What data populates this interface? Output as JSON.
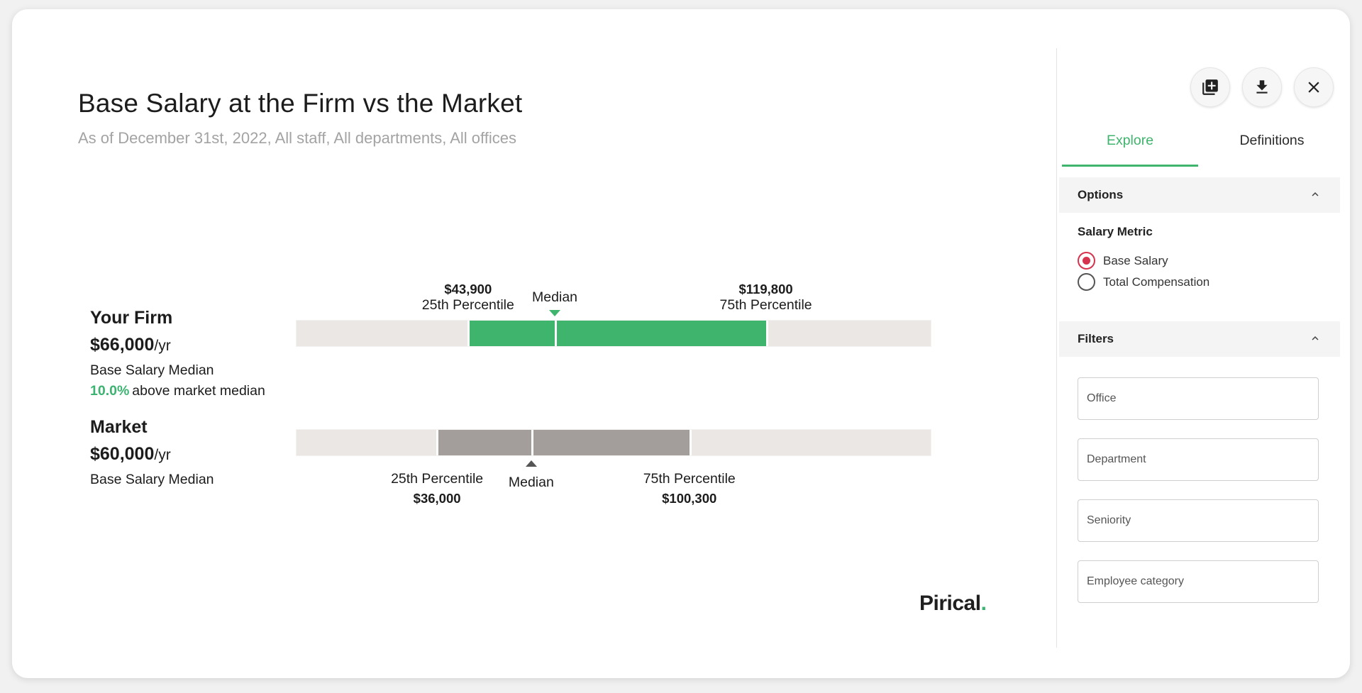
{
  "header": {
    "title": "Base Salary at the Firm vs the Market",
    "subtitle": "As of December 31st, 2022, All staff, All departments, All offices"
  },
  "firm": {
    "name": "Your Firm",
    "median_value": "$66,000",
    "per": "/yr",
    "metric_label": "Base Salary Median",
    "delta_pct": "10.0%",
    "delta_text": "above market median",
    "p25_amount": "$43,900",
    "p25_label": "25th Percentile",
    "median_label": "Median",
    "p75_amount": "$119,800",
    "p75_label": "75th Percentile"
  },
  "market": {
    "name": "Market",
    "median_value": "$60,000",
    "per": "/yr",
    "metric_label": "Base Salary Median",
    "p25_amount": "$36,000",
    "p25_label": "25th Percentile",
    "median_label": "Median",
    "p75_amount": "$100,300",
    "p75_label": "75th Percentile"
  },
  "chart_data": {
    "type": "range-bar",
    "series": [
      {
        "name": "Your Firm",
        "p25": 43900,
        "median": 66000,
        "p75": 119800,
        "color": "#3fb46c"
      },
      {
        "name": "Market",
        "p25": 36000,
        "median": 60000,
        "p75": 100300,
        "color": "#a39e9b"
      }
    ]
  },
  "brand": {
    "logo_text": "Pirical",
    "logo_dot": ".",
    "accent": "#3fb46c"
  },
  "panel": {
    "icons": [
      "add-to-library-icon",
      "download-icon",
      "close-icon"
    ],
    "tabs": [
      {
        "label": "Explore",
        "active": true
      },
      {
        "label": "Definitions",
        "active": false
      }
    ],
    "options_title": "Options",
    "salary_metric_title": "Salary Metric",
    "radios": [
      {
        "label": "Base Salary",
        "checked": true
      },
      {
        "label": "Total Compensation",
        "checked": false
      }
    ],
    "filters_title": "Filters",
    "filters": [
      {
        "placeholder": "Office"
      },
      {
        "placeholder": "Department"
      },
      {
        "placeholder": "Seniority"
      },
      {
        "placeholder": "Employee category"
      }
    ]
  }
}
